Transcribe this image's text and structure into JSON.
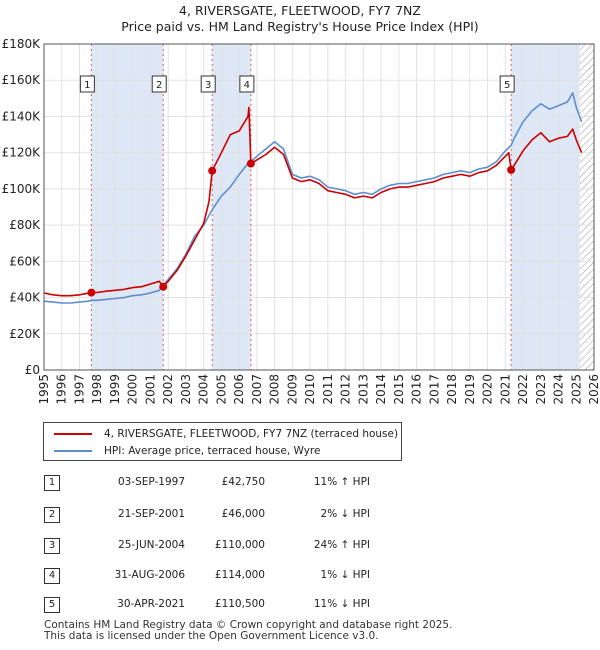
{
  "title_line1": "4, RIVERSGATE, FLEETWOOD, FY7 7NZ",
  "title_line2": "Price paid vs. HM Land Registry's House Price Index (HPI)",
  "legend": {
    "property_label": "4, RIVERSGATE, FLEETWOOD, FY7 7NZ (terraced house)",
    "hpi_label": "HPI: Average price, terraced house, Wyre"
  },
  "colors": {
    "property": "#cc0000",
    "hpi": "#5b8fd0",
    "shade": "#dde7f5",
    "grid": "#e2e2e2"
  },
  "transactions": [
    {
      "id": "1",
      "date": "03-SEP-1997",
      "price": "£42,750",
      "hpi": "11% ↑ HPI"
    },
    {
      "id": "2",
      "date": "21-SEP-2001",
      "price": "£46,000",
      "hpi": "2% ↓ HPI"
    },
    {
      "id": "3",
      "date": "25-JUN-2004",
      "price": "£110,000",
      "hpi": "24% ↑ HPI"
    },
    {
      "id": "4",
      "date": "31-AUG-2006",
      "price": "£114,000",
      "hpi": "1% ↓ HPI"
    },
    {
      "id": "5",
      "date": "30-APR-2021",
      "price": "£110,500",
      "hpi": "11% ↓ HPI"
    }
  ],
  "footer_line1": "Contains HM Land Registry data © Crown copyright and database right 2025.",
  "footer_line2": "This data is licensed under the Open Government Licence v3.0.",
  "chart_data": {
    "type": "line",
    "title": "Price paid vs. HM Land Registry's House Price Index (HPI)",
    "xlim": [
      1995,
      2026
    ],
    "ylim": [
      0,
      180000
    ],
    "x_ticks": [
      "1995",
      "1996",
      "1997",
      "1998",
      "1999",
      "2000",
      "2001",
      "2002",
      "2003",
      "2004",
      "2005",
      "2006",
      "2007",
      "2008",
      "2009",
      "2010",
      "2011",
      "2012",
      "2013",
      "2014",
      "2015",
      "2016",
      "2017",
      "2018",
      "2019",
      "2020",
      "2021",
      "2022",
      "2023",
      "2024",
      "2025",
      "2026"
    ],
    "y_ticks": [
      {
        "value": 0,
        "label": "£0"
      },
      {
        "value": 20000,
        "label": "£20K"
      },
      {
        "value": 40000,
        "label": "£40K"
      },
      {
        "value": 60000,
        "label": "£60K"
      },
      {
        "value": 80000,
        "label": "£80K"
      },
      {
        "value": 100000,
        "label": "£100K"
      },
      {
        "value": 120000,
        "label": "£120K"
      },
      {
        "value": 140000,
        "label": "£140K"
      },
      {
        "value": 160000,
        "label": "£160K"
      },
      {
        "value": 180000,
        "label": "£180K"
      }
    ],
    "shaded_spans": [
      [
        1997.67,
        2001.72
      ],
      [
        2004.48,
        2006.66
      ],
      [
        2021.33,
        2025.2
      ]
    ],
    "hatched_span": [
      2025.2,
      2026
    ],
    "sales": [
      {
        "id": "1",
        "x": 1997.67,
        "y": 42750
      },
      {
        "id": "2",
        "x": 2001.72,
        "y": 46000
      },
      {
        "id": "3",
        "x": 2004.48,
        "y": 110000
      },
      {
        "id": "4",
        "x": 2006.66,
        "y": 114000
      },
      {
        "id": "5",
        "x": 2021.33,
        "y": 110500
      }
    ],
    "series": [
      {
        "name": "HPI: Average price, terraced house, Wyre",
        "x": [
          1995,
          1995.5,
          1996,
          1996.5,
          1997,
          1997.5,
          1997.67,
          1998,
          1998.5,
          1999,
          1999.5,
          2000,
          2000.5,
          2001,
          2001.5,
          2001.72,
          2002,
          2002.5,
          2003,
          2003.5,
          2004,
          2004.48,
          2005,
          2005.5,
          2006,
          2006.5,
          2006.66,
          2007,
          2007.5,
          2008,
          2008.5,
          2009,
          2009.5,
          2010,
          2010.5,
          2011,
          2011.5,
          2012,
          2012.5,
          2013,
          2013.5,
          2014,
          2014.5,
          2015,
          2015.5,
          2016,
          2016.5,
          2017,
          2017.5,
          2018,
          2018.5,
          2019,
          2019.5,
          2020,
          2020.5,
          2021,
          2021.33,
          2021.5,
          2022,
          2022.5,
          2023,
          2023.5,
          2024,
          2024.5,
          2024.8,
          2025,
          2025.3
        ],
        "values": [
          38000,
          37500,
          37000,
          37000,
          37500,
          38000,
          38500,
          38500,
          39000,
          39500,
          40000,
          41000,
          41500,
          42500,
          44000,
          47000,
          50000,
          56000,
          64000,
          74000,
          80000,
          88500,
          96000,
          101000,
          108000,
          114000,
          115000,
          118000,
          122000,
          126000,
          122000,
          108000,
          106000,
          107000,
          105000,
          101000,
          100000,
          99000,
          97000,
          98000,
          97000,
          100000,
          102000,
          103000,
          103000,
          104000,
          105000,
          106000,
          108000,
          109000,
          110000,
          109000,
          111000,
          112000,
          115000,
          121000,
          124000,
          128000,
          137000,
          143000,
          147000,
          144000,
          146000,
          148000,
          153000,
          145000,
          137000
        ]
      },
      {
        "name": "4, RIVERSGATE, FLEETWOOD, FY7 7NZ (terraced house)",
        "x": [
          1995,
          1995.5,
          1996,
          1996.5,
          1997,
          1997.67,
          1998,
          1998.5,
          1999,
          1999.5,
          2000,
          2000.5,
          2001,
          2001.5,
          2001.72,
          2002,
          2002.5,
          2003,
          2003.5,
          2004,
          2004.3,
          2004.48,
          2005,
          2005.5,
          2006,
          2006.5,
          2006.55,
          2006.66,
          2007,
          2007.5,
          2008,
          2008.5,
          2009,
          2009.5,
          2010,
          2010.5,
          2011,
          2011.5,
          2012,
          2012.5,
          2013,
          2013.5,
          2014,
          2014.5,
          2015,
          2015.5,
          2016,
          2016.5,
          2017,
          2017.5,
          2018,
          2018.5,
          2019,
          2019.5,
          2020,
          2020.5,
          2021,
          2021.2,
          2021.33,
          2021.5,
          2022,
          2022.5,
          2023,
          2023.5,
          2024,
          2024.5,
          2024.8,
          2025,
          2025.3
        ],
        "values": [
          42500,
          41500,
          41000,
          41000,
          41500,
          42750,
          42800,
          43500,
          44000,
          44500,
          45500,
          46000,
          47500,
          49000,
          46000,
          49000,
          55000,
          63000,
          72000,
          81000,
          93000,
          110000,
          120000,
          130000,
          132000,
          140000,
          145000,
          114000,
          116000,
          119000,
          123000,
          119000,
          106000,
          104000,
          105000,
          103000,
          99000,
          98000,
          97000,
          95000,
          96000,
          95000,
          98000,
          100000,
          101000,
          101000,
          102000,
          103000,
          104000,
          106000,
          107000,
          108000,
          107000,
          109000,
          110000,
          113000,
          118000,
          120000,
          110500,
          113000,
          121000,
          127000,
          131000,
          126000,
          128000,
          129000,
          133000,
          127000,
          120000
        ]
      }
    ]
  }
}
